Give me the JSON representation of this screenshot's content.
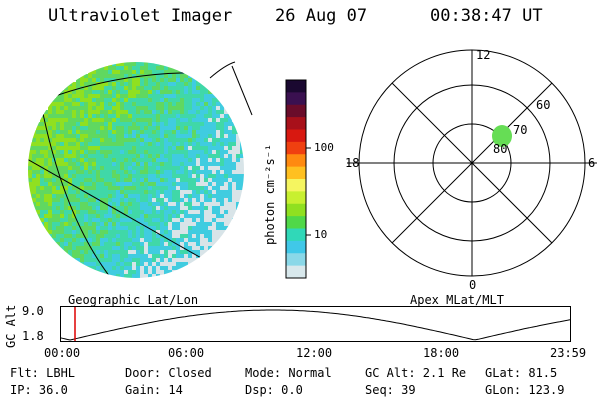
{
  "header": {
    "title": "Ultraviolet Imager",
    "date": "26 Aug 07",
    "time": "00:38:47 UT"
  },
  "colorbar": {
    "unit_label": "photon cm⁻²s⁻¹",
    "ticks": [
      "100",
      "10"
    ],
    "colors": [
      "#1a0830",
      "#3a1050",
      "#6a0c2a",
      "#a8101a",
      "#d81810",
      "#f04010",
      "#ff8a10",
      "#ffc020",
      "#f5f560",
      "#c8f030",
      "#90e020",
      "#50d848",
      "#30d8b8",
      "#40c8e8",
      "#8ad8e8",
      "#d8e8ec"
    ]
  },
  "geo_image": {
    "caption": "Geographic Lat/Lon",
    "colors": [
      "#90e020",
      "#60d860",
      "#40d8a8",
      "#40cce0",
      "#d8e4e8"
    ]
  },
  "polar": {
    "caption": "Apex MLat/MLT",
    "mlt_labels": [
      "12",
      "18",
      "6",
      "0"
    ],
    "lat_labels": [
      "60",
      "70",
      "80"
    ],
    "spot_color": "#66dd55"
  },
  "altitude_plot": {
    "ylabel": "GC Alt",
    "ytick_high": "9.0",
    "ytick_low": "1.8",
    "xticks": [
      "00:00",
      "06:00",
      "12:00",
      "18:00",
      "23:59"
    ],
    "curve_color": "#000000",
    "marker_color": "#dd0000"
  },
  "info": {
    "row1": {
      "flt": "Flt: LBHL",
      "door": "Door: Closed",
      "mode": "Mode: Normal",
      "gc_alt": "GC Alt: 2.1 Re",
      "glat": "GLat:  81.5"
    },
    "row2": {
      "ip": "IP: 36.0",
      "gain": "Gain: 14",
      "dsp": "Dsp:    0.0",
      "seq": "Seq: 39",
      "glon": "GLon: 123.9"
    }
  }
}
